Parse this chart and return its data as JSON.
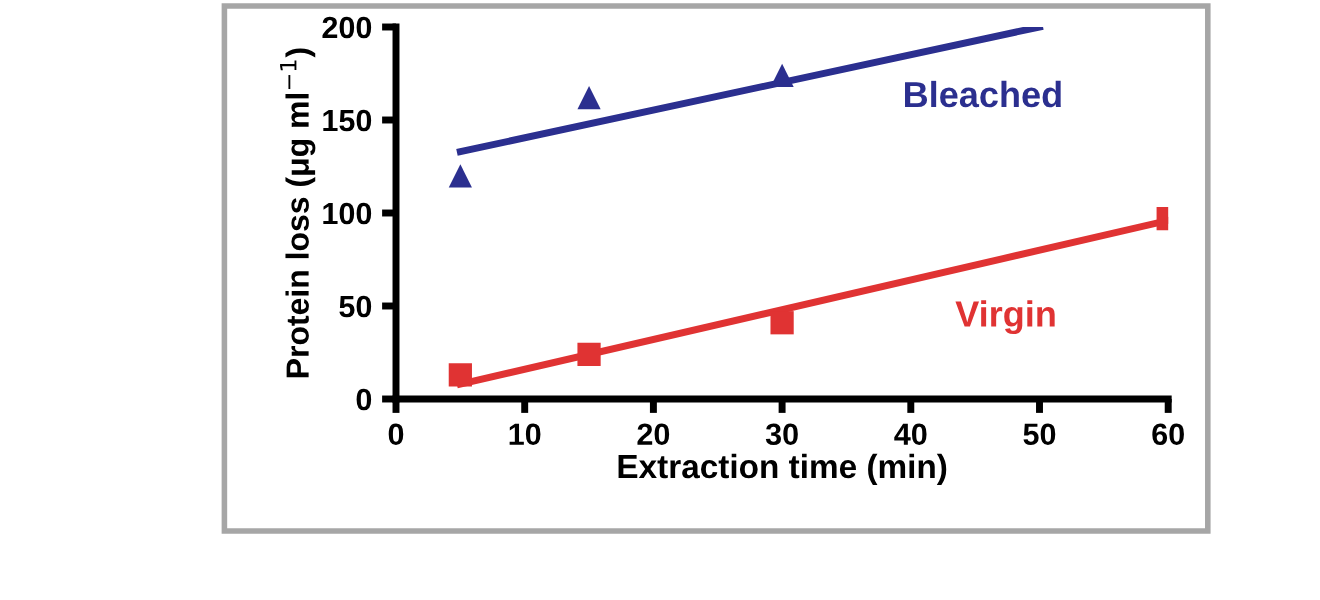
{
  "chart_data": {
    "type": "scatter",
    "xlabel": "Extraction time (min)",
    "ylabel": "Protein loss (μg ml$^{−1}$)",
    "xlim": [
      0,
      60
    ],
    "xticks": [
      0,
      10,
      20,
      30,
      40,
      50,
      60
    ],
    "ylim": [
      0,
      200
    ],
    "yticks": [
      0,
      50,
      100,
      150,
      200
    ],
    "grid": false,
    "legend": false,
    "series": [
      {
        "name": "Bleached",
        "type": "scatter",
        "marker": "triangle",
        "color": "#2b2f8f",
        "x": [
          5,
          15,
          30
        ],
        "values": [
          120,
          162,
          174
        ]
      },
      {
        "type": "line",
        "marker": "none",
        "color": "#2b2f8f",
        "x": [
          5,
          50
        ],
        "values": [
          133,
          200
        ]
      },
      {
        "name": "Virgin",
        "type": "scatter",
        "marker": "square",
        "color": "#e03333",
        "x": [
          5,
          15,
          30,
          60
        ],
        "values": [
          13,
          24,
          41,
          97
        ]
      },
      {
        "type": "line",
        "marker": "none",
        "color": "#e03333",
        "x": [
          5,
          60
        ],
        "values": [
          8,
          96
        ]
      }
    ]
  }
}
